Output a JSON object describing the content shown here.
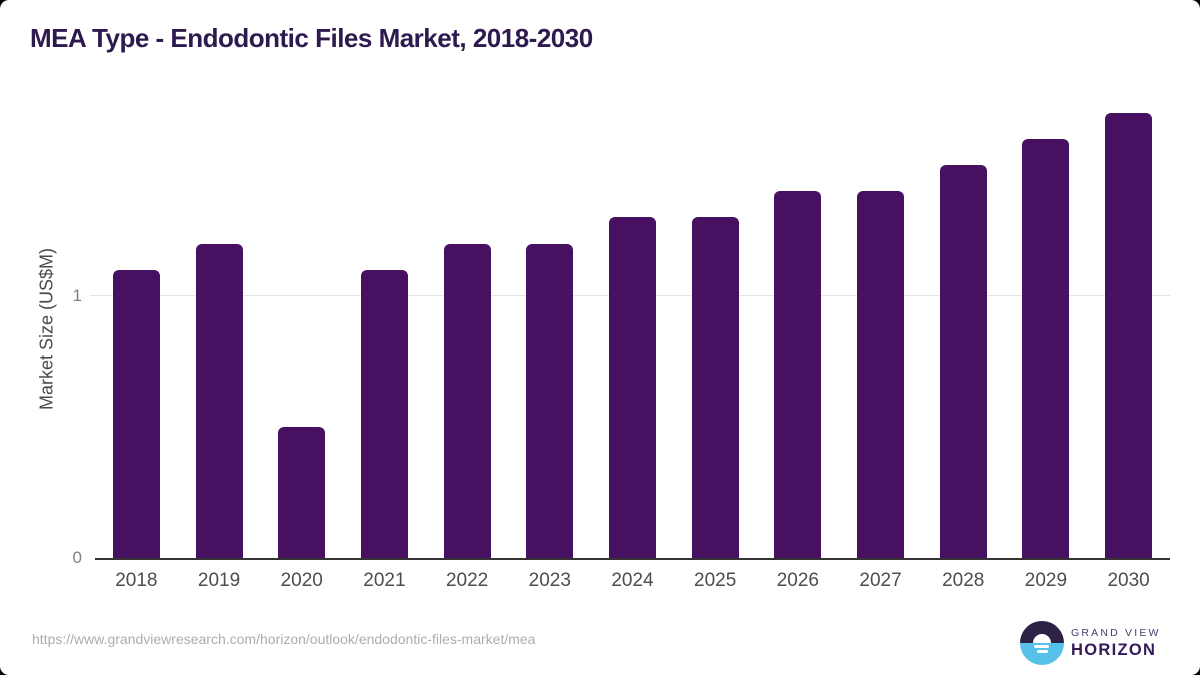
{
  "title": "MEA Type - Endodontic Files Market, 2018-2030",
  "chart_data": {
    "type": "bar",
    "title": "MEA Type - Endodontic Files Market, 2018-2030",
    "categories": [
      "2018",
      "2019",
      "2020",
      "2021",
      "2022",
      "2023",
      "2024",
      "2025",
      "2026",
      "2027",
      "2028",
      "2029",
      "2030"
    ],
    "values": [
      1.1,
      1.2,
      0.5,
      1.1,
      1.2,
      1.2,
      1.3,
      1.3,
      1.4,
      1.4,
      1.5,
      1.6,
      1.7
    ],
    "xlabel": "",
    "ylabel": "Market Size (US$M)",
    "ylim": [
      0,
      1.75
    ],
    "yticks": [
      0,
      1
    ],
    "grid": "single horizontal gridline at y=1",
    "legend": "none",
    "bar_color": "#481061"
  },
  "colors": {
    "title_text": "#2e1a4e",
    "bar": "#481061",
    "gridline": "#e4e4e4",
    "axis_line": "#333333",
    "tick_label": "#828282",
    "category_label": "#4d4d4d",
    "footer_url": "#adadad",
    "logo_navy": "#2e2146",
    "logo_blue": "#57c2e9",
    "logo_text_dark": "#33195c"
  },
  "footer": {
    "source_url": "https://www.grandviewresearch.com/horizon/outlook/endodontic-files-market/mea",
    "logo": {
      "brand_top": "GRAND VIEW",
      "brand_bottom": "HORIZON",
      "icon": "horizon-sun-icon"
    }
  }
}
